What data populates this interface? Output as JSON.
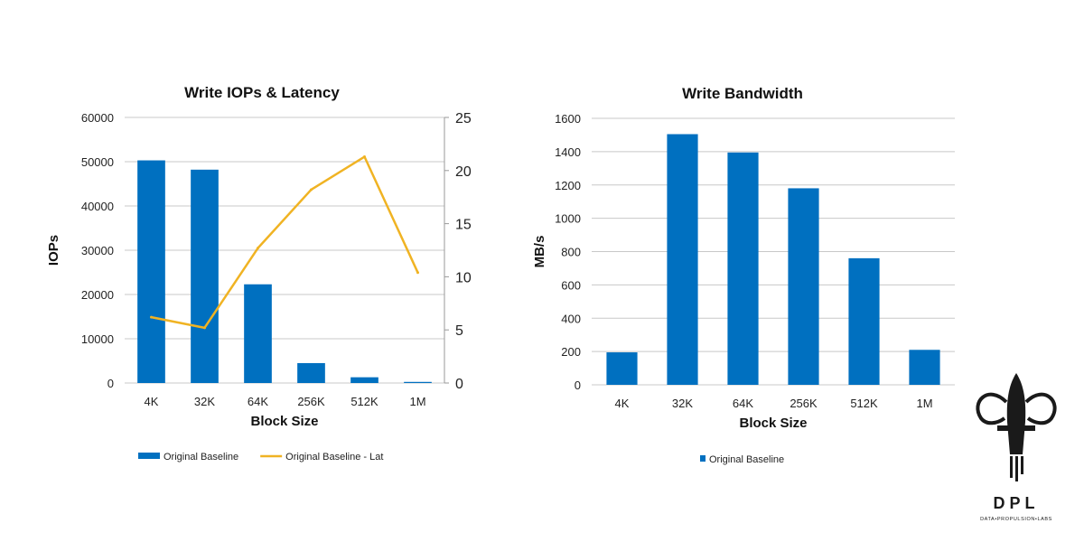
{
  "chart_data": [
    {
      "type": "bar",
      "title": "Write IOPs & Latency",
      "xlabel": "Block Size",
      "ylabel": "IOPs",
      "categories": [
        "4K",
        "32K",
        "64K",
        "256K",
        "512K",
        "1M"
      ],
      "ylim": [
        0,
        60000
      ],
      "yticks": [
        "0",
        "10000",
        "20000",
        "30000",
        "40000",
        "50000",
        "60000"
      ],
      "y2lim": [
        0,
        25
      ],
      "y2ticks": [
        "0",
        "5",
        "10",
        "15",
        "20",
        "25"
      ],
      "grid": true,
      "legend_position": "bottom",
      "series": [
        {
          "name": "Original Baseline",
          "type": "bar",
          "axis": "left",
          "color": "#0070C0",
          "values": [
            50300,
            48200,
            22300,
            4500,
            1300,
            250
          ]
        },
        {
          "name": "Original Baseline - Lat",
          "type": "line",
          "axis": "right",
          "color": "#F0B323",
          "values": [
            6.2,
            5.2,
            12.7,
            18.2,
            21.3,
            10.4
          ]
        }
      ]
    },
    {
      "type": "bar",
      "title": "Write Bandwidth",
      "xlabel": "Block Size",
      "ylabel": "MB/s",
      "categories": [
        "4K",
        "32K",
        "64K",
        "256K",
        "512K",
        "1M"
      ],
      "ylim": [
        0,
        1600
      ],
      "yticks": [
        "0",
        "200",
        "400",
        "600",
        "800",
        "1000",
        "1200",
        "1400",
        "1600"
      ],
      "grid": true,
      "legend_position": "bottom",
      "series": [
        {
          "name": "Original Baseline",
          "type": "bar",
          "color": "#0070C0",
          "values": [
            195,
            1505,
            1395,
            1180,
            760,
            210
          ]
        }
      ]
    }
  ],
  "logo": {
    "text": "DPL",
    "tagline": "DATA•PROPULSION•LABS",
    "icon": "rocket-fleur-icon"
  }
}
